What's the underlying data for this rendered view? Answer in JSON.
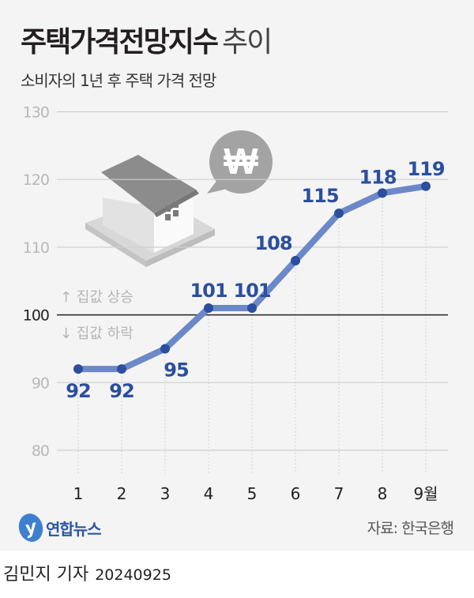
{
  "title": "주택가격전망지수",
  "title_suffix": "추이",
  "subtitle": "소비자의 1년 후 주택 가격 전망",
  "annotations": {
    "up": "↑ 집값 상승",
    "down": "↓ 집값 하락"
  },
  "logo": "연합뉴스",
  "source": "자료: 한국은행",
  "byline": {
    "reporter": "김민지 기자",
    "date": "20240925"
  },
  "colors": {
    "line": "#6b88c8",
    "point": "#2b4f9e",
    "label": "#2b4f9e"
  },
  "chart_data": {
    "type": "line",
    "title": "주택가격전망지수 추이",
    "categories": [
      "1",
      "2",
      "3",
      "4",
      "5",
      "6",
      "7",
      "8",
      "9월"
    ],
    "values": [
      92,
      92,
      95,
      101,
      101,
      108,
      115,
      118,
      119
    ],
    "yticks": [
      80,
      90,
      100,
      110,
      120,
      130
    ],
    "ylim": [
      80,
      130
    ],
    "reference_line": 100,
    "grid": true
  }
}
